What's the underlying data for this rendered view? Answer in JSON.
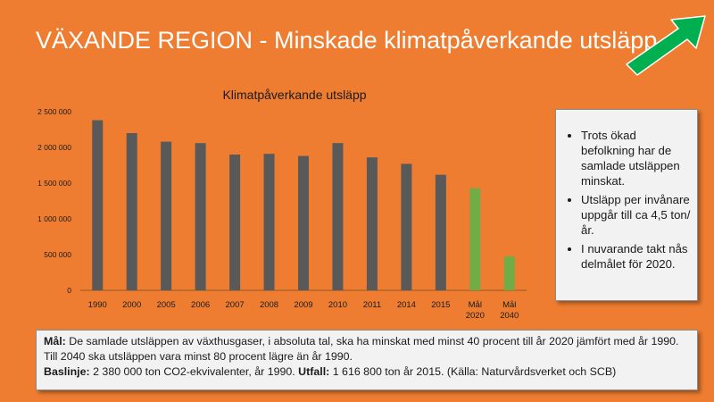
{
  "slide": {
    "title": "VÄXANDE REGION - Minskade klimatpåverkande utsläpp"
  },
  "colors": {
    "background": "#ee7d31",
    "bar_actual": "#595959",
    "bar_target": "#70ad47",
    "arrow": "#00b050"
  },
  "icons": {
    "trend": "arrow-up-right-icon"
  },
  "chart_data": {
    "type": "bar",
    "title": "Klimatpåverkande utsläpp",
    "categories": [
      "1990",
      "2000",
      "2005",
      "2006",
      "2007",
      "2008",
      "2009",
      "2010",
      "2011",
      "2014",
      "2015",
      "Mål 2020",
      "Mål 2040"
    ],
    "values": [
      2380000,
      2200000,
      2080000,
      2060000,
      1900000,
      1910000,
      1880000,
      2060000,
      1860000,
      1770000,
      1616800,
      1428000,
      476000
    ],
    "bar_kind": [
      "actual",
      "actual",
      "actual",
      "actual",
      "actual",
      "actual",
      "actual",
      "actual",
      "actual",
      "actual",
      "actual",
      "target",
      "target"
    ],
    "ylim": [
      0,
      2500000
    ],
    "yticks": [
      0,
      500000,
      1000000,
      1500000,
      2000000,
      2500000
    ],
    "ytick_labels": [
      "0",
      "500 000",
      "1 000 000",
      "1 500 000",
      "2 000 000",
      "2 500 000"
    ],
    "xlabel": "",
    "ylabel": "",
    "grid": false,
    "legend": "none"
  },
  "notes": {
    "bullets": [
      "Trots ökad befolkning har de samlade utsläppen minskat.",
      "Utsläpp per invånare uppgår till ca 4,5 ton/år.",
      "I nuvarande takt nås delmålet för 2020."
    ]
  },
  "goal": {
    "label1": "Mål:",
    "text1": " De samlade utsläppen av växthusgaser, i absoluta tal, ska ha minskat med minst 40 procent till år 2020 jämfört med år 1990. Till 2040 ska utsläppen vara minst 80 procent lägre än år 1990.",
    "label2": "Baslinje:",
    "text2": " 2 380 000 ton CO2-ekvivalenter, år 1990. ",
    "label3": "Utfall:",
    "text3": " 1 616 800 ton år 2015. (Källa: Naturvårdsverket och SCB)"
  }
}
